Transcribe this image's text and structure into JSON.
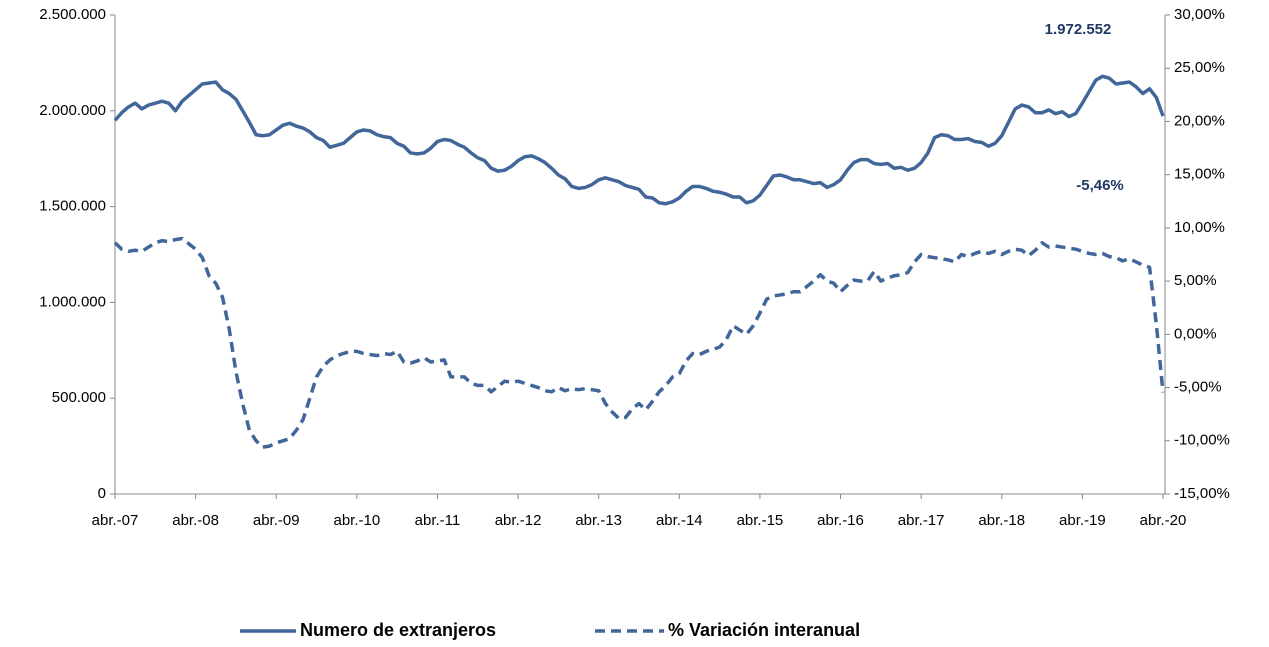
{
  "chart_data": {
    "type": "line",
    "categories": [
      "abr.-07",
      null,
      null,
      null,
      null,
      null,
      null,
      null,
      null,
      null,
      null,
      null,
      "abr.-08",
      null,
      null,
      null,
      null,
      null,
      null,
      null,
      null,
      null,
      null,
      null,
      "abr.-09",
      null,
      null,
      null,
      null,
      null,
      null,
      null,
      null,
      null,
      null,
      null,
      "abr.-10",
      null,
      null,
      null,
      null,
      null,
      null,
      null,
      null,
      null,
      null,
      null,
      "abr.-11",
      null,
      null,
      null,
      null,
      null,
      null,
      null,
      null,
      null,
      null,
      null,
      "abr.-12",
      null,
      null,
      null,
      null,
      null,
      null,
      null,
      null,
      null,
      null,
      null,
      "abr.-13",
      null,
      null,
      null,
      null,
      null,
      null,
      null,
      null,
      null,
      null,
      null,
      "abr.-14",
      null,
      null,
      null,
      null,
      null,
      null,
      null,
      null,
      null,
      null,
      null,
      "abr.-15",
      null,
      null,
      null,
      null,
      null,
      null,
      null,
      null,
      null,
      null,
      null,
      "abr.-16",
      null,
      null,
      null,
      null,
      null,
      null,
      null,
      null,
      null,
      null,
      null,
      "abr.-17",
      null,
      null,
      null,
      null,
      null,
      null,
      null,
      null,
      null,
      null,
      null,
      "abr.-18",
      null,
      null,
      null,
      null,
      null,
      null,
      null,
      null,
      null,
      null,
      null,
      "abr.-19",
      null,
      null,
      null,
      null,
      null,
      null,
      null,
      null,
      null,
      null,
      null,
      "abr.-20"
    ],
    "series": [
      {
        "name": "Numero de extranjeros",
        "color": "#41679a",
        "line_style": "solid",
        "axis": "y",
        "values": [
          1950000,
          1990000,
          2020000,
          2040000,
          2010000,
          2030000,
          2040000,
          2050000,
          2040000,
          2000000,
          2050000,
          2080000,
          2110000,
          2140000,
          2145000,
          2150000,
          2110000,
          2090000,
          2060000,
          2000000,
          1940000,
          1875000,
          1870000,
          1875000,
          1900000,
          1925000,
          1935000,
          1920000,
          1910000,
          1890000,
          1860000,
          1845000,
          1810000,
          1820000,
          1830000,
          1860000,
          1890000,
          1900000,
          1895000,
          1875000,
          1865000,
          1860000,
          1830000,
          1815000,
          1780000,
          1775000,
          1780000,
          1805000,
          1840000,
          1850000,
          1845000,
          1825000,
          1810000,
          1780000,
          1755000,
          1740000,
          1700000,
          1685000,
          1690000,
          1710000,
          1740000,
          1760000,
          1765000,
          1750000,
          1730000,
          1700000,
          1665000,
          1645000,
          1605000,
          1595000,
          1600000,
          1615000,
          1640000,
          1650000,
          1640000,
          1630000,
          1610000,
          1600000,
          1590000,
          1550000,
          1545000,
          1520000,
          1515000,
          1525000,
          1545000,
          1580000,
          1605000,
          1605000,
          1595000,
          1580000,
          1575000,
          1565000,
          1550000,
          1550000,
          1520000,
          1530000,
          1560000,
          1610000,
          1660000,
          1665000,
          1655000,
          1640000,
          1640000,
          1630000,
          1620000,
          1625000,
          1600000,
          1615000,
          1640000,
          1690000,
          1730000,
          1745000,
          1745000,
          1725000,
          1720000,
          1725000,
          1700000,
          1705000,
          1690000,
          1700000,
          1730000,
          1780000,
          1860000,
          1875000,
          1870000,
          1850000,
          1850000,
          1855000,
          1840000,
          1835000,
          1815000,
          1830000,
          1870000,
          1940000,
          2010000,
          2030000,
          2020000,
          1990000,
          1990000,
          2005000,
          1985000,
          1995000,
          1970000,
          1985000,
          2040000,
          2100000,
          2160000,
          2180000,
          2170000,
          2140000,
          2145000,
          2150000,
          2125000,
          2090000,
          2115000,
          2070000,
          1972552
        ]
      },
      {
        "name": "% Variación interanual",
        "color": "#41679a",
        "line_style": "dashed",
        "axis": "y2",
        "values": [
          8.6,
          8.0,
          7.8,
          7.9,
          7.8,
          8.2,
          8.6,
          8.8,
          8.7,
          8.9,
          9.0,
          8.5,
          8.0,
          7.2,
          5.5,
          4.8,
          3.5,
          0.5,
          -3.5,
          -6.5,
          -9.0,
          -10.0,
          -10.6,
          -10.5,
          -10.2,
          -10.0,
          -9.8,
          -9.0,
          -8.0,
          -6.0,
          -4.0,
          -3.0,
          -2.4,
          -2.0,
          -1.8,
          -1.6,
          -1.6,
          -1.8,
          -1.9,
          -2.0,
          -1.8,
          -1.9,
          -1.6,
          -2.6,
          -2.7,
          -2.5,
          -2.2,
          -2.6,
          -2.5,
          -2.4,
          -4.0,
          -4.0,
          -4.0,
          -4.6,
          -4.8,
          -4.8,
          -5.4,
          -4.9,
          -4.4,
          -4.5,
          -4.4,
          -4.6,
          -4.8,
          -5.0,
          -5.3,
          -5.4,
          -5.0,
          -5.3,
          -5.1,
          -5.2,
          -5.1,
          -5.2,
          -5.3,
          -6.5,
          -7.3,
          -7.9,
          -7.8,
          -7.0,
          -6.5,
          -7.1,
          -6.3,
          -5.4,
          -4.8,
          -4.0,
          -3.7,
          -2.5,
          -1.8,
          -1.9,
          -1.6,
          -1.4,
          -1.2,
          -0.5,
          0.8,
          0.4,
          0.0,
          0.8,
          2.0,
          3.3,
          3.6,
          3.7,
          3.8,
          4.0,
          4.0,
          4.5,
          5.0,
          5.6,
          5.0,
          4.8,
          4.0,
          4.6,
          5.1,
          5.0,
          5.0,
          5.9,
          5.0,
          5.3,
          5.5,
          5.6,
          5.8,
          6.8,
          7.5,
          7.3,
          7.2,
          7.1,
          7.0,
          6.8,
          7.5,
          7.3,
          7.6,
          7.8,
          7.6,
          7.8,
          7.5,
          7.8,
          8.0,
          7.9,
          7.4,
          7.9,
          8.6,
          8.2,
          8.3,
          8.2,
          8.1,
          8.0,
          7.8,
          7.6,
          7.5,
          7.6,
          7.3,
          7.2,
          6.9,
          7.1,
          6.8,
          6.5,
          6.3,
          1.0,
          -5.46
        ]
      }
    ],
    "ylim": [
      0,
      2500000
    ],
    "yticks": [
      0,
      {
        "value": 500000,
        "label": "500.000"
      },
      {
        "value": 1000000,
        "label": "1.000.000"
      },
      {
        "value": 1500000,
        "label": "1.500.000"
      },
      {
        "value": 2000000,
        "label": "2.000.000"
      },
      {
        "value": 2500000,
        "label": "2.500.000"
      }
    ],
    "y2lim": [
      -15,
      30
    ],
    "y2ticks": [
      {
        "value": -15,
        "label": "-15,00%"
      },
      {
        "value": -10,
        "label": "-10,00%"
      },
      {
        "value": -5,
        "label": "-5,00%"
      },
      {
        "value": 0,
        "label": "0,00%"
      },
      {
        "value": 5,
        "label": "5,00%"
      },
      {
        "value": 10,
        "label": "10,00%"
      },
      {
        "value": 15,
        "label": "15,00%"
      },
      {
        "value": 20,
        "label": "20,00%"
      },
      {
        "value": 25,
        "label": "25,00%"
      },
      {
        "value": 30,
        "label": "30,00%"
      }
    ],
    "annotations": [
      {
        "text": "1.972.552"
      },
      {
        "text": "-5,46%"
      }
    ],
    "grid": false,
    "legend": "bottom"
  }
}
